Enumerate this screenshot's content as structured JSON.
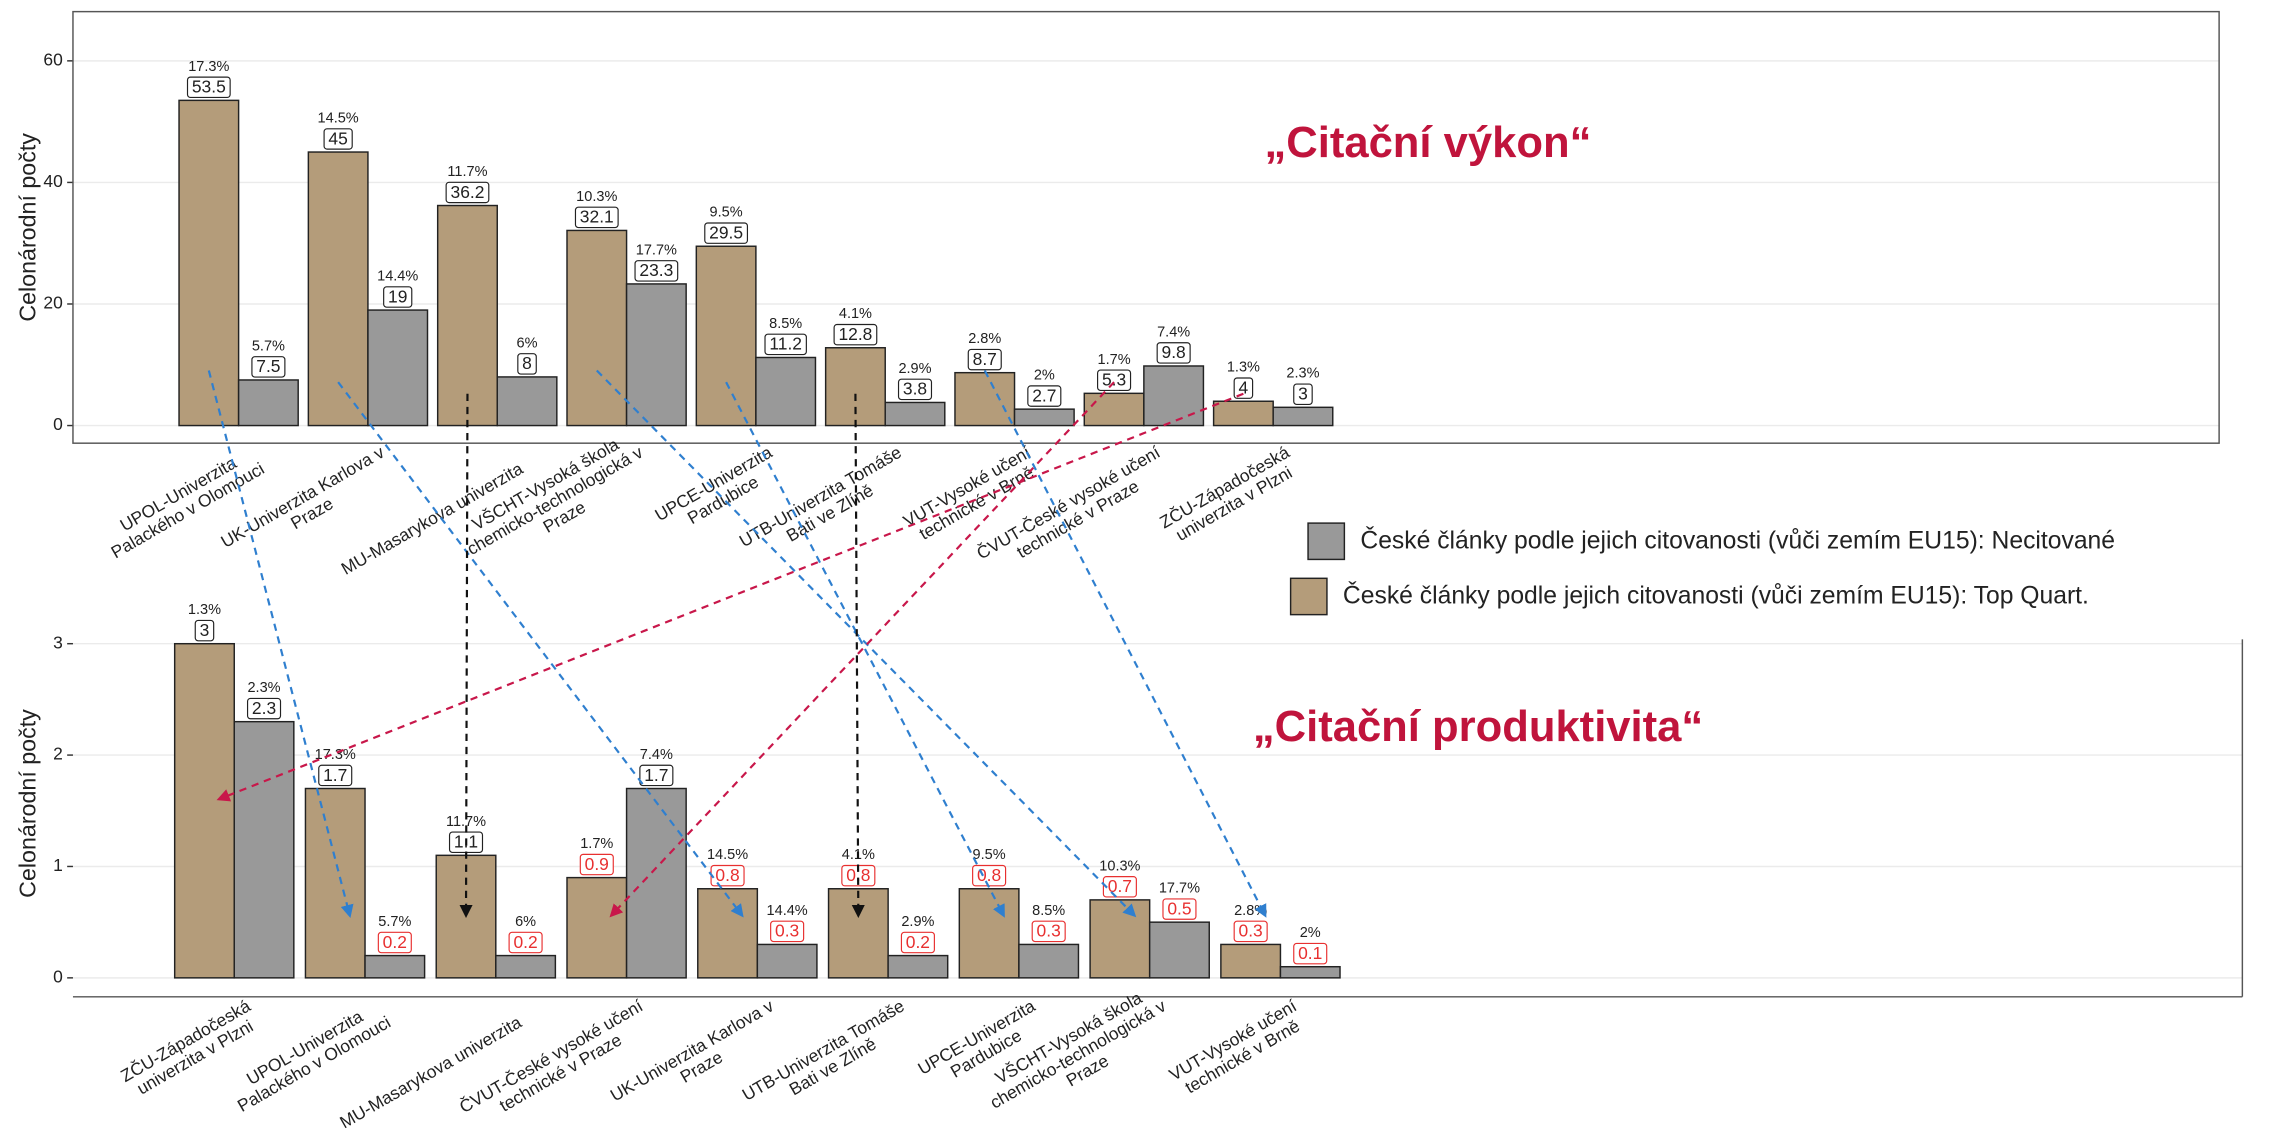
{
  "chart_data": [
    {
      "type": "bar",
      "title": "„Citační výkon“",
      "ylabel": "Celonárodní počty",
      "ylim": [
        -2.9,
        68.1
      ],
      "yticks": [
        0,
        20,
        40,
        60
      ],
      "grid": true,
      "legend": "right",
      "categories": [
        [
          "UPOL-Univerzita",
          "Palackého v Olomouci"
        ],
        [
          "UK-Univerzita Karlova v",
          "Praze"
        ],
        [
          "MU-Masarykova univerzita"
        ],
        [
          "VŠCHT-Vysoká škola",
          "chemicko-technologická v",
          "Praze"
        ],
        [
          "UPCE-Univerzita",
          "Pardubice"
        ],
        [
          "UTB-Univerzita Tomáše",
          "Bati ve Zlíně"
        ],
        [
          "VUT-Vysoké učení",
          "technické v Brně"
        ],
        [
          "ČVUT-České vysoké učení",
          "technické v Praze"
        ],
        [
          "ZČU-Západočeská",
          "univerzita v Plzni"
        ]
      ],
      "series": [
        {
          "name": "České články podle jejich citovanosti (vůči zemím EU15): Top Quart.",
          "color": "#b49c7a",
          "values": [
            53.5,
            45,
            36.2,
            32.1,
            29.5,
            12.8,
            8.7,
            5.3,
            4
          ],
          "share_labels": [
            "17.3%",
            "14.5%",
            "11.7%",
            "10.3%",
            "9.5%",
            "4.1%",
            "2.8%",
            "1.7%",
            "1.3%"
          ]
        },
        {
          "name": "České články podle jejich citovanosti (vůči zemím EU15): Necitované",
          "color": "#999999",
          "values": [
            7.5,
            19,
            8,
            23.3,
            11.2,
            3.8,
            2.7,
            9.8,
            3
          ],
          "share_labels": [
            "5.7%",
            "14.4%",
            "6%",
            "17.7%",
            "8.5%",
            "2.9%",
            "2%",
            "7.4%",
            "2.3%"
          ]
        }
      ]
    },
    {
      "type": "bar",
      "title": "„Citační produktivita“",
      "ylabel": "Celonárodní počty",
      "ylim": [
        -0.17,
        3.3
      ],
      "yticks": [
        0,
        1,
        2,
        3
      ],
      "grid": true,
      "categories": [
        [
          "ZČU-Západočeská",
          "univerzita v Plzni"
        ],
        [
          "UPOL-Univerzita",
          "Palackého v Olomouci"
        ],
        [
          "MU-Masarykova univerzita"
        ],
        [
          "ČVUT-České vysoké učení",
          "technické v Praze"
        ],
        [
          "UK-Univerzita Karlova v",
          "Praze"
        ],
        [
          "UTB-Univerzita Tomáše",
          "Bati ve Zlíně"
        ],
        [
          "UPCE-Univerzita",
          "Pardubice"
        ],
        [
          "VŠCHT-Vysoká škola",
          "chemicko-technologická v",
          "Praze"
        ],
        [
          "VUT-Vysoké učení",
          "technické v Brně"
        ]
      ],
      "series": [
        {
          "color": "#b49c7a",
          "values": [
            3,
            1.7,
            1.1,
            0.9,
            0.8,
            0.8,
            0.8,
            0.7,
            0.3
          ],
          "share_labels": [
            "1.3%",
            "17.3%",
            "11.7%",
            "1.7%",
            "14.5%",
            "4.1%",
            "9.5%",
            "10.3%",
            "2.8%"
          ],
          "label_colors": [
            "#222",
            "#222",
            "#222",
            "#e83030",
            "#e83030",
            "#e83030",
            "#e83030",
            "#e83030",
            "#e83030"
          ]
        },
        {
          "color": "#999999",
          "values": [
            2.3,
            0.2,
            0.2,
            1.7,
            0.3,
            0.2,
            0.3,
            0.5,
            0.1
          ],
          "share_labels": [
            "2.3%",
            "5.7%",
            "6%",
            "7.4%",
            "14.4%",
            "2.9%",
            "8.5%",
            "17.7%",
            "2%"
          ],
          "label_colors": [
            "#222",
            "#e83030",
            "#e83030",
            "#222",
            "#e83030",
            "#e83030",
            "#e83030",
            "#e83030",
            "#e83030"
          ]
        }
      ]
    }
  ]
}
